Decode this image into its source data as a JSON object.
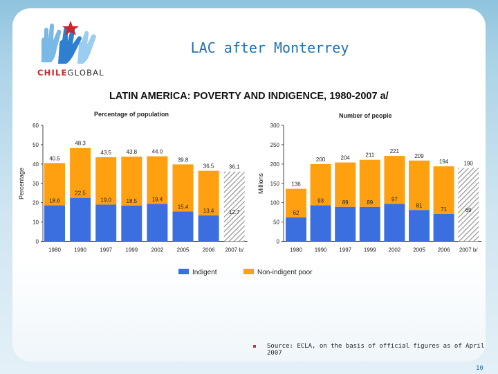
{
  "header": {
    "logo_text_red": "CHILE",
    "logo_text_dark": "GLOBAL",
    "title": "LAC after Monterrey"
  },
  "chart_data": {
    "title": "LATIN AMERICA: POVERTY AND INDIGENCE, 1980-2007 a/",
    "type": "bar",
    "colors": {
      "indigent": "#3b6fe0",
      "non_indigent": "#ffa010"
    },
    "legend": {
      "indigent": "Indigent",
      "non_indigent": "Non-indigent poor",
      "position": "bottom"
    },
    "panels": [
      {
        "subtitle": "Percentage of population",
        "ylabel": "Percentage",
        "ylim": [
          0,
          60
        ],
        "yticks": [
          0,
          10,
          20,
          30,
          40,
          50,
          60
        ],
        "categories": [
          "1980",
          "1990",
          "1997",
          "1999",
          "2002",
          "2005",
          "2006",
          "2007 b/"
        ],
        "series": [
          {
            "name": "Indigent",
            "values": [
              18.6,
              22.5,
              19.0,
              18.5,
              19.4,
              15.4,
              13.4,
              12.7
            ]
          }
        ],
        "totals": [
          40.5,
          48.3,
          43.5,
          43.8,
          44.0,
          39.8,
          36.5,
          36.1
        ],
        "labels_indigent": [
          "18.6",
          "22.5",
          "19.0",
          "18.5",
          "19.4",
          "15.4",
          "13.4",
          "12.7"
        ],
        "labels_total": [
          "40.5",
          "48.3",
          "43.5",
          "43.8",
          "44.0",
          "39.8",
          "36.5",
          "36.1"
        ],
        "projected_last": true
      },
      {
        "subtitle": "Number of people",
        "ylabel": "Millions",
        "ylim": [
          0,
          300
        ],
        "yticks": [
          0,
          50,
          100,
          150,
          200,
          250,
          300
        ],
        "categories": [
          "1980",
          "1990",
          "1997",
          "1999",
          "2002",
          "2005",
          "2006",
          "2007 b/"
        ],
        "series": [
          {
            "name": "Indigent",
            "values": [
              62,
              93,
              89,
              89,
              97,
              81,
              71,
              69
            ]
          }
        ],
        "totals": [
          136,
          200,
          204,
          211,
          221,
          209,
          194,
          190
        ],
        "labels_indigent": [
          "62",
          "93",
          "89",
          "89",
          "97",
          "81",
          "71",
          "69"
        ],
        "labels_total": [
          "136",
          "200",
          "204",
          "211",
          "221",
          "209",
          "194",
          "190"
        ],
        "projected_last": true
      }
    ]
  },
  "footer": {
    "source": "Source: ECLA, on the basis of official figures as of April 2007",
    "page_number": "10"
  }
}
